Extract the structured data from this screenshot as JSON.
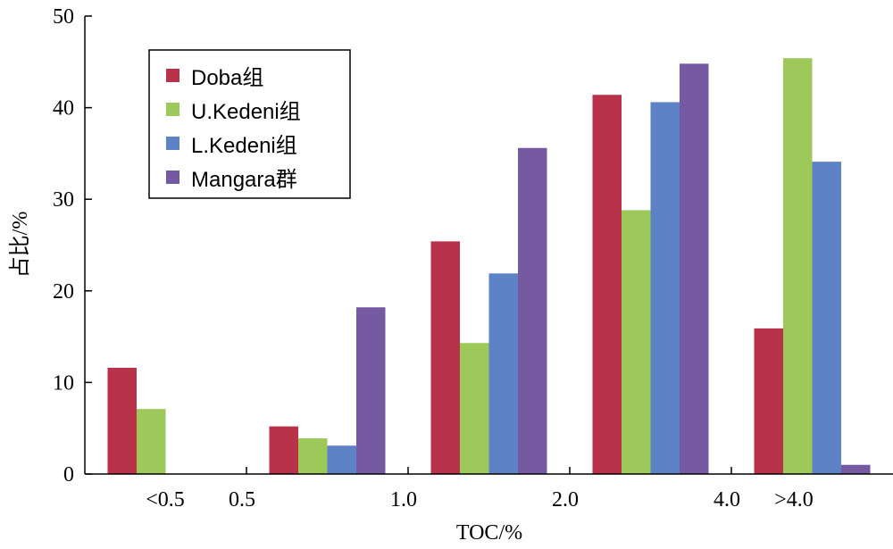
{
  "chart_data": {
    "type": "bar",
    "x_tick_labels": [
      "<0.5",
      "0.5",
      "1.0",
      "2.0",
      "4.0",
      ">4.0"
    ],
    "categories": [
      "<0.5",
      "0.5–1.0",
      "1.0–2.0",
      "2.0–4.0",
      ">4.0"
    ],
    "series": [
      {
        "name": "Doba组",
        "color": "#b8334a",
        "values": [
          11.6,
          5.2,
          25.4,
          41.4,
          15.9
        ]
      },
      {
        "name": "U.Kedeni组",
        "color": "#9dc85a",
        "values": [
          7.1,
          3.9,
          14.3,
          28.8,
          45.4
        ]
      },
      {
        "name": "L.Kedeni组",
        "color": "#5e82c6",
        "values": [
          0,
          3.1,
          21.9,
          40.6,
          34.1
        ]
      },
      {
        "name": "Mangara群",
        "color": "#7559a1",
        "values": [
          0,
          18.2,
          35.6,
          44.8,
          1.0
        ]
      }
    ],
    "ylim": [
      0,
      50
    ],
    "y_ticks": [
      0,
      10,
      20,
      30,
      40,
      50
    ],
    "xlabel": "TOC/%",
    "ylabel": "占比/%",
    "legend_position": "top-left"
  }
}
